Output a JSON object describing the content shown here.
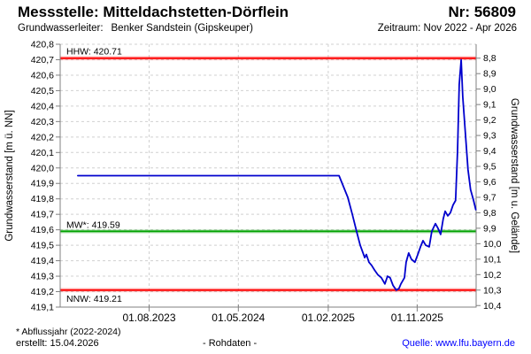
{
  "header": {
    "title": "Messstelle: Mitteldachstetten-Dörflein",
    "station_no": "Nr: 56809",
    "aquifer_label": "Grundwasserleiter:",
    "aquifer_value": "Benker Sandstein (Gipskeuper)",
    "period": "Zeitraum: Nov 2022 - Apr 2026"
  },
  "footer": {
    "note": "* Abflussjahr (2022-2024)",
    "created": "erstellt:  15.04.2026",
    "center": "- Rohdaten -",
    "source": "Quelle: www.lfu.bayern.de"
  },
  "chart_data": {
    "type": "line",
    "ylabel_left": "Grundwasserstand [m ü. NN]",
    "ylabel_right": "Grundwasserstand [m u. Gelände]",
    "ylim_left": [
      419.1,
      420.8
    ],
    "y_left_ticks": [
      "420,8",
      "420,7",
      "420,6",
      "420,5",
      "420,4",
      "420,3",
      "420,2",
      "420,1",
      "420,0",
      "419,9",
      "419,8",
      "419,7",
      "419,6",
      "419,5",
      "419,4",
      "419,3",
      "419,2",
      "419,1"
    ],
    "y_right_ticks": [
      "8,8",
      "8,9",
      "9,0",
      "9,1",
      "9,2",
      "9,3",
      "9,4",
      "9,5",
      "9,6",
      "9,7",
      "9,8",
      "9,9",
      "10,0",
      "10,1",
      "10,2",
      "10,3",
      "10,4"
    ],
    "right_axis_ground_elevation": 429.51,
    "x_range": [
      "2022-11-01",
      "2026-05-01"
    ],
    "x_ticks": [
      "01.08.2023",
      "01.05.2024",
      "01.02.2025",
      "01.11.2025"
    ],
    "grid": true,
    "reference_lines": [
      {
        "id": "hhw",
        "label": "HHW: 420.71",
        "value": 420.71,
        "color": "#ff0000",
        "label_side": "above"
      },
      {
        "id": "mw",
        "label": "MW*: 419.59",
        "value": 419.59,
        "color": "#00a300",
        "label_side": "above"
      },
      {
        "id": "nnw",
        "label": "NNW: 419.21",
        "value": 419.21,
        "color": "#ff0000",
        "label_side": "below"
      }
    ],
    "series": [
      {
        "name": "Rohdaten",
        "color": "#0000cd",
        "points": [
          [
            "2022-12-25",
            419.95
          ],
          [
            "2025-03-06",
            419.95
          ],
          [
            "2025-04-02",
            419.81
          ],
          [
            "2025-04-16",
            419.7
          ],
          [
            "2025-04-29",
            419.59
          ],
          [
            "2025-05-10",
            419.5
          ],
          [
            "2025-05-24",
            419.42
          ],
          [
            "2025-05-29",
            419.44
          ],
          [
            "2025-06-06",
            419.39
          ],
          [
            "2025-06-14",
            419.37
          ],
          [
            "2025-06-23",
            419.34
          ],
          [
            "2025-07-03",
            419.31
          ],
          [
            "2025-07-14",
            419.29
          ],
          [
            "2025-07-25",
            419.25
          ],
          [
            "2025-08-02",
            419.3
          ],
          [
            "2025-08-10",
            419.29
          ],
          [
            "2025-08-19",
            419.24
          ],
          [
            "2025-08-29",
            419.21
          ],
          [
            "2025-09-06",
            419.22
          ],
          [
            "2025-09-12",
            419.25
          ],
          [
            "2025-09-23",
            419.29
          ],
          [
            "2025-09-28",
            419.39
          ],
          [
            "2025-10-06",
            419.45
          ],
          [
            "2025-10-14",
            419.41
          ],
          [
            "2025-10-25",
            419.39
          ],
          [
            "2025-11-03",
            419.44
          ],
          [
            "2025-11-11",
            419.49
          ],
          [
            "2025-11-19",
            419.53
          ],
          [
            "2025-11-27",
            419.5
          ],
          [
            "2025-12-08",
            419.49
          ],
          [
            "2025-12-16",
            419.59
          ],
          [
            "2025-12-27",
            419.64
          ],
          [
            "2026-01-04",
            419.61
          ],
          [
            "2026-01-12",
            419.57
          ],
          [
            "2026-01-20",
            419.67
          ],
          [
            "2026-01-26",
            419.72
          ],
          [
            "2026-02-03",
            419.69
          ],
          [
            "2026-02-11",
            419.71
          ],
          [
            "2026-02-19",
            419.76
          ],
          [
            "2026-02-27",
            419.79
          ],
          [
            "2026-03-05",
            420.11
          ],
          [
            "2026-03-10",
            420.54
          ],
          [
            "2026-03-16",
            420.7
          ],
          [
            "2026-03-21",
            420.46
          ],
          [
            "2026-03-29",
            420.22
          ],
          [
            "2026-04-06",
            419.99
          ],
          [
            "2026-04-14",
            419.86
          ],
          [
            "2026-04-23",
            419.79
          ],
          [
            "2026-04-30",
            419.73
          ]
        ]
      }
    ]
  },
  "colors": {
    "frame": "#808080",
    "grid": "#d0d0d0",
    "link": "#0000ff"
  }
}
